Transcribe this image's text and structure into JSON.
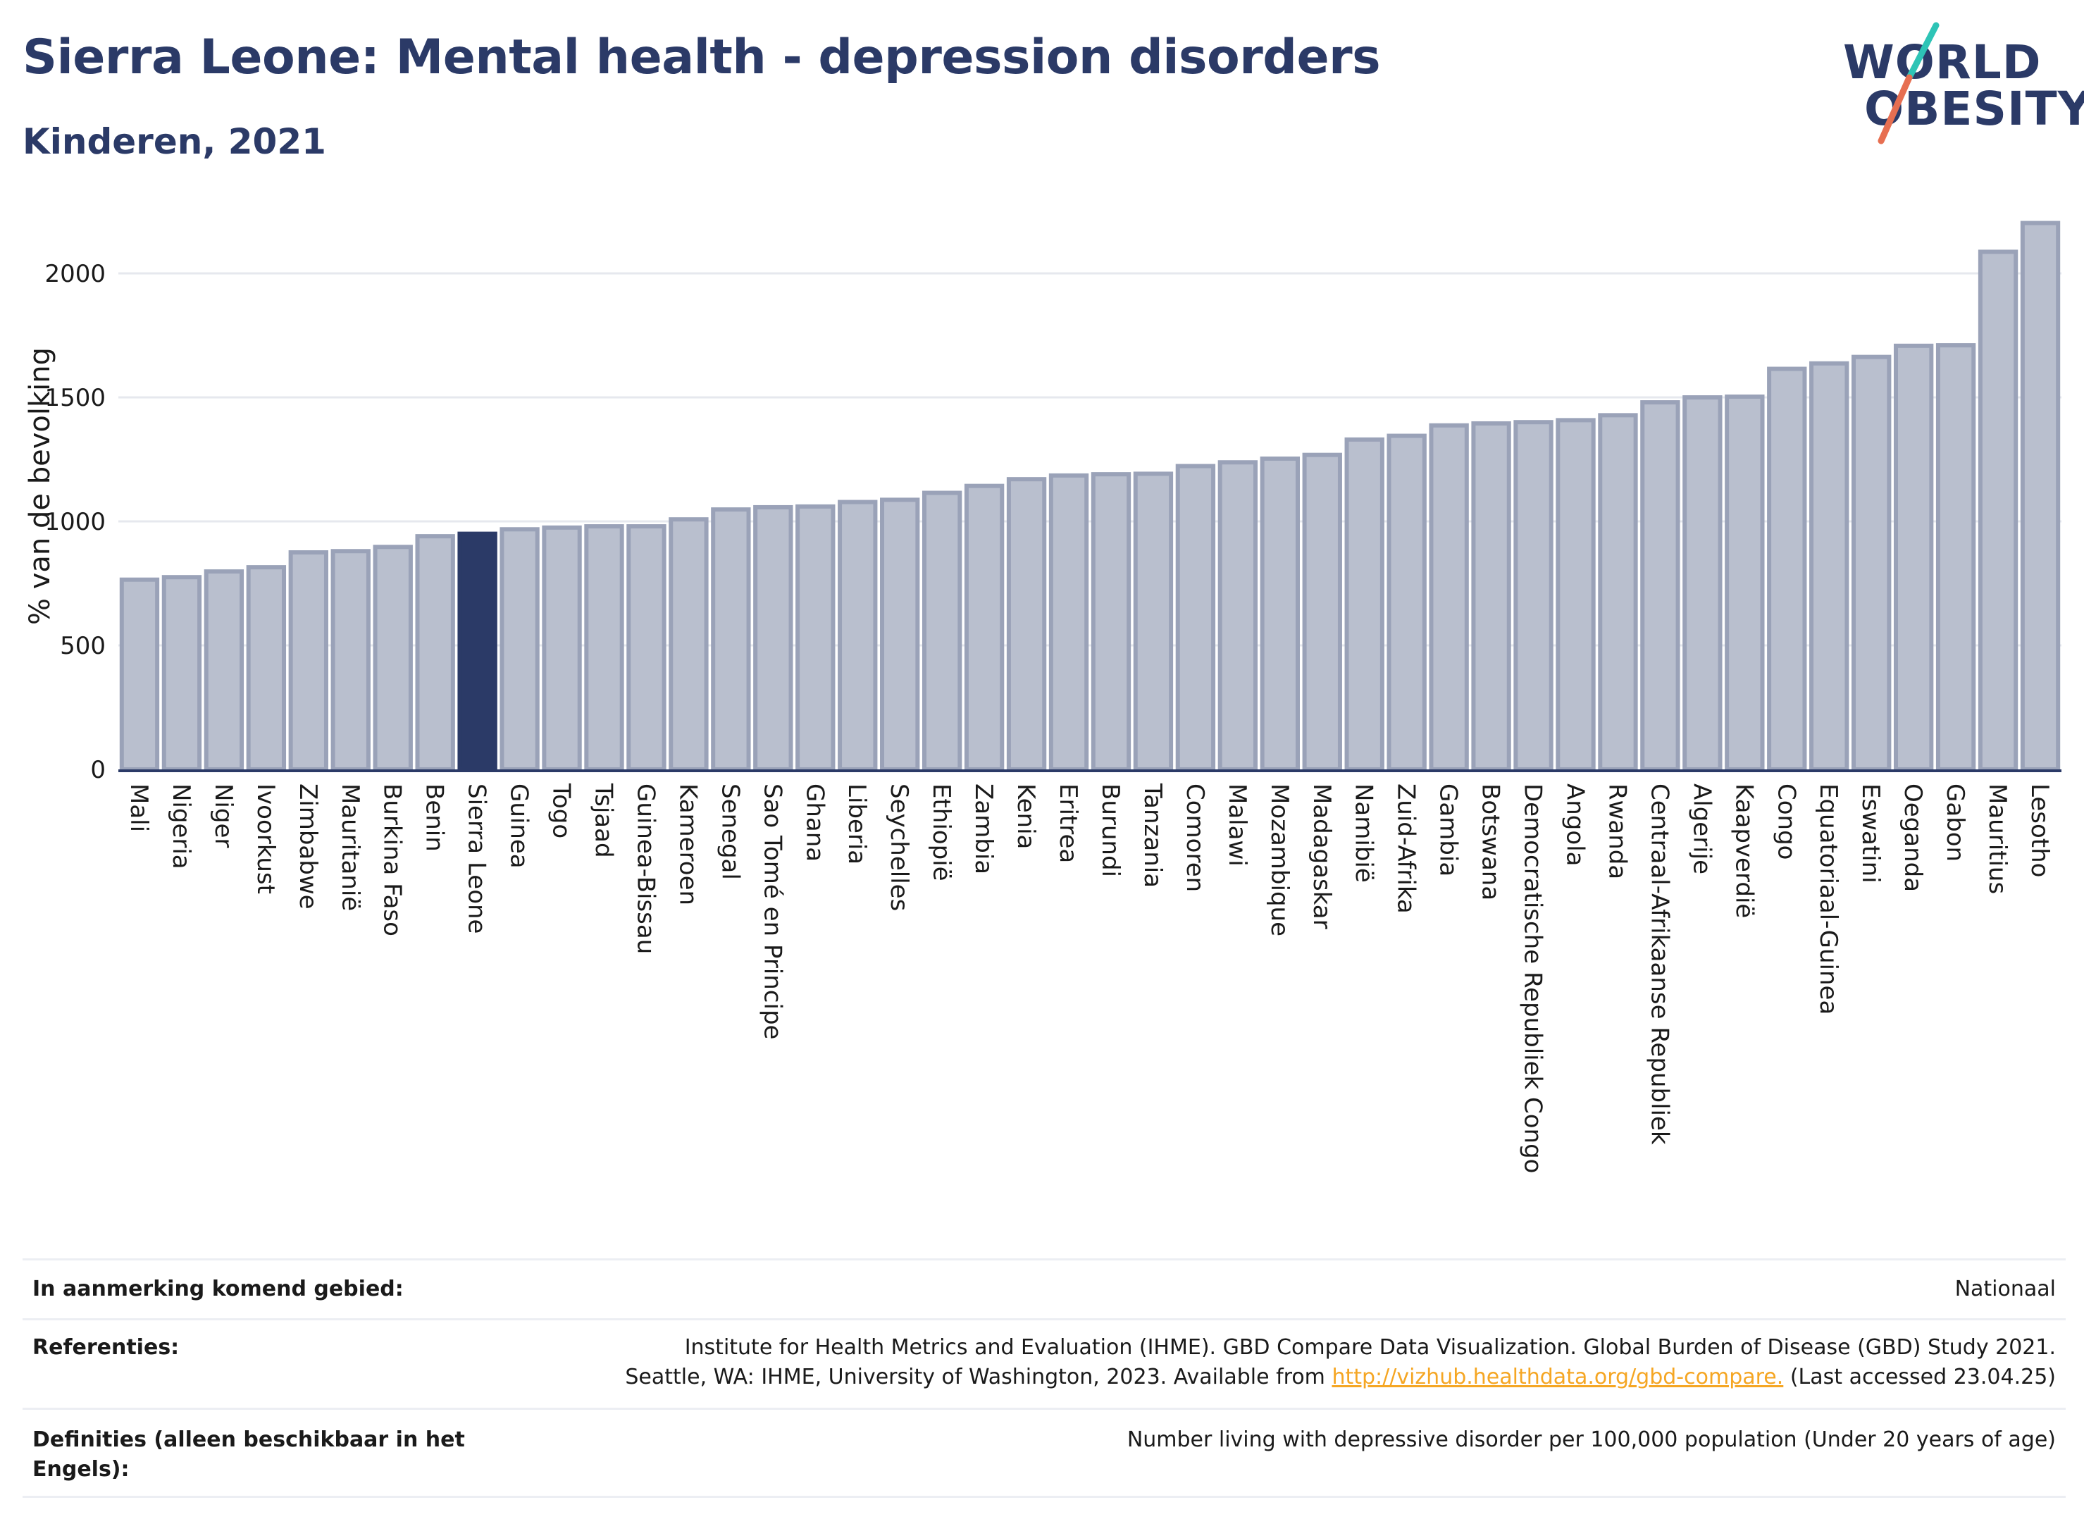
{
  "header": {
    "title": "Sierra Leone: Mental health - depression disorders",
    "subtitle": "Kinderen, 2021"
  },
  "logo": {
    "line1": "WORLD",
    "line2": "OBESITY",
    "accent_colors": [
      "#2ec4b6",
      "#e76f51"
    ]
  },
  "chart_data": {
    "type": "bar",
    "ylabel": "% van de bevolking",
    "ylim": [
      0,
      2250
    ],
    "yticks": [
      0,
      500,
      1000,
      1500,
      2000
    ],
    "grid": true,
    "highlight": "Sierra Leone",
    "colors": {
      "bar": "#b9bfce",
      "bar_edge": "#9aa2b8",
      "highlight": "#2b3a67",
      "grid": "#e6e8ee",
      "axis": "#2b3a67"
    },
    "categories": [
      "Mali",
      "Nigeria",
      "Niger",
      "Ivoorkust",
      "Zimbabwe",
      "Mauritanië",
      "Burkina Faso",
      "Benin",
      "Sierra Leone",
      "Guinea",
      "Togo",
      "Tsjaad",
      "Guinea-Bissau",
      "Kameroen",
      "Senegal",
      "Sao Tomé en Principe",
      "Ghana",
      "Liberia",
      "Seychelles",
      "Ethiopië",
      "Zambia",
      "Kenia",
      "Eritrea",
      "Burundi",
      "Tanzania",
      "Comoren",
      "Malawi",
      "Mozambique",
      "Madagaskar",
      "Namibië",
      "Zuid-Afrika",
      "Gambia",
      "Botswana",
      "Democratische Republiek Congo",
      "Angola",
      "Rwanda",
      "Centraal-Afrikaanse Republiek",
      "Algerije",
      "Kaapverdië",
      "Congo",
      "Equatoriaal-Guinea",
      "Eswatini",
      "Oeganda",
      "Gabon",
      "Mauritius",
      "Lesotho"
    ],
    "values": [
      765,
      775,
      798,
      815,
      875,
      880,
      897,
      940,
      950,
      968,
      975,
      980,
      980,
      1008,
      1048,
      1057,
      1060,
      1078,
      1087,
      1115,
      1143,
      1170,
      1185,
      1190,
      1192,
      1223,
      1238,
      1253,
      1268,
      1330,
      1345,
      1387,
      1395,
      1400,
      1408,
      1428,
      1480,
      1500,
      1503,
      1615,
      1637,
      1663,
      1708,
      1710,
      2087,
      2203
    ]
  },
  "info_table": {
    "rows": [
      {
        "label": "In aanmerking komend gebied:",
        "value": "Nationaal"
      },
      {
        "label": "Referenties:",
        "value_line1": "Institute for Health Metrics and Evaluation (IHME). GBD Compare Data Visualization. Global Burden of Disease (GBD) Study 2021.",
        "value_line2_pre": "Seattle, WA: IHME, University of Washington, 2023. Available from ",
        "value_link": "http://vizhub.healthdata.org/gbd-compare.",
        "value_line2_post": " (Last accessed 23.04.25)"
      },
      {
        "label": "Definities (alleen beschikbaar in het Engels):",
        "value": "Number living with depressive disorder per 100,000 population (Under 20 years of age)"
      }
    ]
  }
}
